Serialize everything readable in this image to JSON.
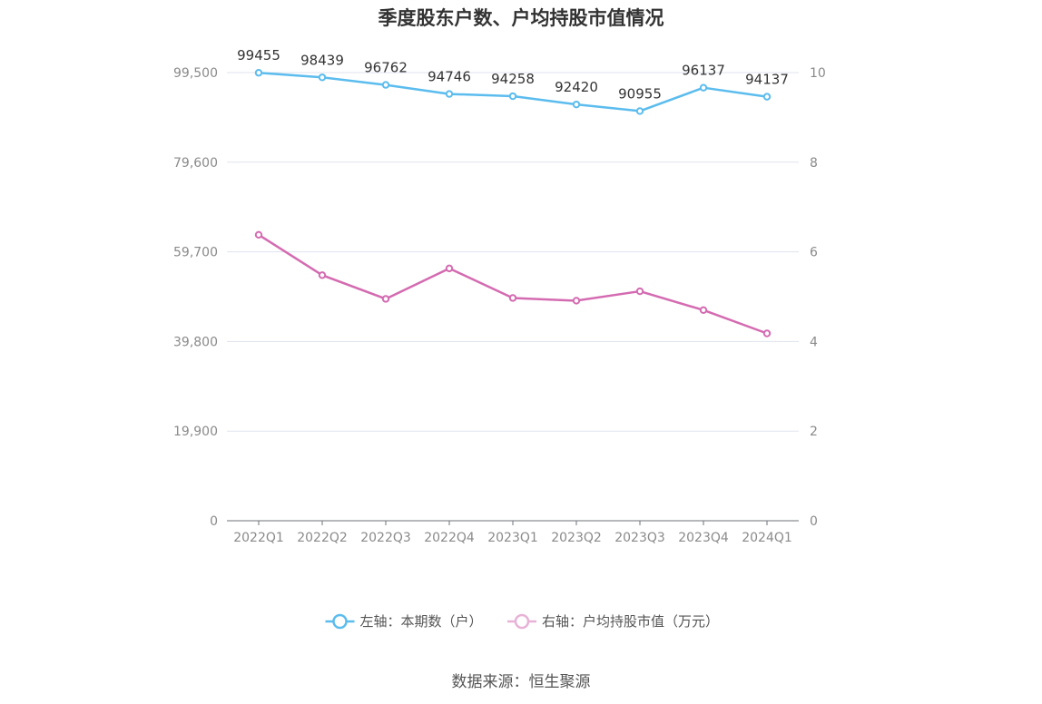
{
  "title": "季度股东户数、户均持股市值情况",
  "source": "数据来源：恒生聚源",
  "colors": {
    "left_series": "#5bbcee",
    "right_series": "#d46bb1",
    "grid": "#dfe3ee",
    "axis": "#6e7079",
    "tick_text": "#8a8a8a"
  },
  "chart_data": {
    "type": "line",
    "categories": [
      "2022Q1",
      "2022Q2",
      "2022Q3",
      "2022Q4",
      "2023Q1",
      "2023Q2",
      "2023Q3",
      "2023Q4",
      "2024Q1"
    ],
    "y_left": {
      "min": 0,
      "max": 99500,
      "ticks": [
        "0",
        "19,900",
        "39,800",
        "59,700",
        "79,600",
        "99,500"
      ],
      "tick_values": [
        0,
        19900,
        39800,
        59700,
        79600,
        99500
      ]
    },
    "y_right": {
      "min": 0,
      "max": 10,
      "ticks": [
        "0",
        "2",
        "4",
        "6",
        "8",
        "10"
      ],
      "tick_values": [
        0,
        2,
        4,
        6,
        8,
        10
      ]
    },
    "grid": true,
    "legend_position": "bottom",
    "series": [
      {
        "name": "左轴：本期数（户）",
        "axis": "left",
        "color": "#5bbcee",
        "values": [
          99455,
          98439,
          96762,
          94746,
          94258,
          92420,
          90955,
          96137,
          94137
        ],
        "labels": [
          "99455",
          "98439",
          "96762",
          "94746",
          "94258",
          "92420",
          "90955",
          "96137",
          "94137"
        ]
      },
      {
        "name": "右轴：户均持股市值（万元）",
        "axis": "right",
        "color": "#d46bb1",
        "values": [
          6.38,
          5.48,
          4.95,
          5.63,
          4.97,
          4.91,
          5.12,
          4.7,
          4.18
        ]
      }
    ]
  }
}
